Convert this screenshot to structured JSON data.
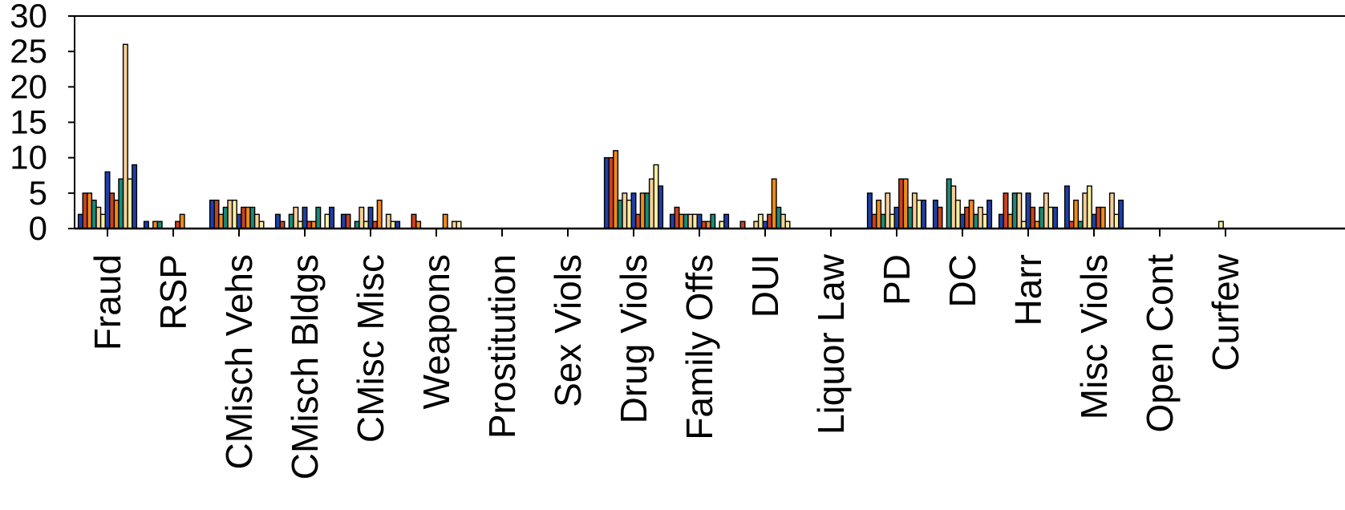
{
  "chart_data": {
    "type": "bar",
    "title": "",
    "xlabel": "",
    "ylabel": "",
    "ylim": [
      0,
      30
    ],
    "yticks": [
      0,
      5,
      10,
      15,
      20,
      25,
      30
    ],
    "grid": false,
    "legend": "none",
    "categories": [
      "Fraud",
      "RSP",
      "CMisch Vehs",
      "CMisch Bldgs",
      "CMisc Misc",
      "Weapons",
      "Prostitution",
      "Sex Viols",
      "Drug Viols",
      "Family Offs",
      "DUI",
      "Liquor Law",
      "PD",
      "DC",
      "Harr",
      "Misc Viols",
      "Open Cont",
      "Curfew"
    ],
    "bar_colors": [
      "#1f3fa6",
      "#c8421c",
      "#ee8a1c",
      "#1a8a78",
      "#f7cf98",
      "#f7efa0"
    ],
    "values": [
      [
        2,
        5,
        5,
        4,
        3,
        2,
        8,
        5,
        4,
        7,
        26,
        7,
        9
      ],
      [
        1,
        0,
        1,
        1,
        0,
        0,
        0,
        1,
        2,
        0,
        0,
        0,
        0
      ],
      [
        4,
        4,
        2,
        3,
        4,
        4,
        2,
        3,
        3,
        3,
        2,
        1,
        0
      ],
      [
        2,
        1,
        0,
        2,
        3,
        1,
        3,
        1,
        1,
        3,
        0,
        2,
        3
      ],
      [
        2,
        2,
        0,
        1,
        3,
        1,
        3,
        1,
        4,
        0,
        2,
        1,
        1
      ],
      [
        0,
        2,
        1,
        0,
        0,
        0,
        0,
        0,
        2,
        0,
        1,
        1,
        0
      ],
      [
        0,
        0,
        0,
        0,
        0,
        0,
        0,
        0,
        0,
        0,
        0,
        0,
        0
      ],
      [
        0,
        0,
        0,
        0,
        0,
        0,
        0,
        0,
        0,
        0,
        0,
        0,
        0
      ],
      [
        10,
        10,
        11,
        4,
        5,
        4,
        5,
        2,
        5,
        5,
        7,
        9,
        6
      ],
      [
        2,
        3,
        2,
        2,
        2,
        2,
        2,
        1,
        1,
        2,
        0,
        1,
        2
      ],
      [
        0,
        1,
        0,
        0,
        1,
        2,
        1,
        2,
        7,
        3,
        2,
        1,
        0
      ],
      [
        0,
        0,
        0,
        0,
        0,
        0,
        0,
        0,
        0,
        0,
        0,
        0,
        0
      ],
      [
        5,
        2,
        4,
        2,
        5,
        2,
        3,
        7,
        7,
        3,
        5,
        4,
        4
      ],
      [
        4,
        3,
        0,
        7,
        6,
        4,
        2,
        3,
        4,
        2,
        3,
        2,
        4
      ],
      [
        2,
        5,
        2,
        5,
        5,
        1,
        5,
        3,
        1,
        3,
        5,
        3,
        3
      ],
      [
        6,
        1,
        4,
        1,
        5,
        6,
        2,
        3,
        3,
        0,
        5,
        2,
        4
      ],
      [
        0,
        0,
        0,
        0,
        0,
        0,
        0,
        0,
        0,
        0,
        0,
        0,
        0
      ],
      [
        0,
        0,
        0,
        0,
        0,
        1,
        0,
        0,
        0,
        0,
        0,
        0,
        0
      ]
    ]
  }
}
